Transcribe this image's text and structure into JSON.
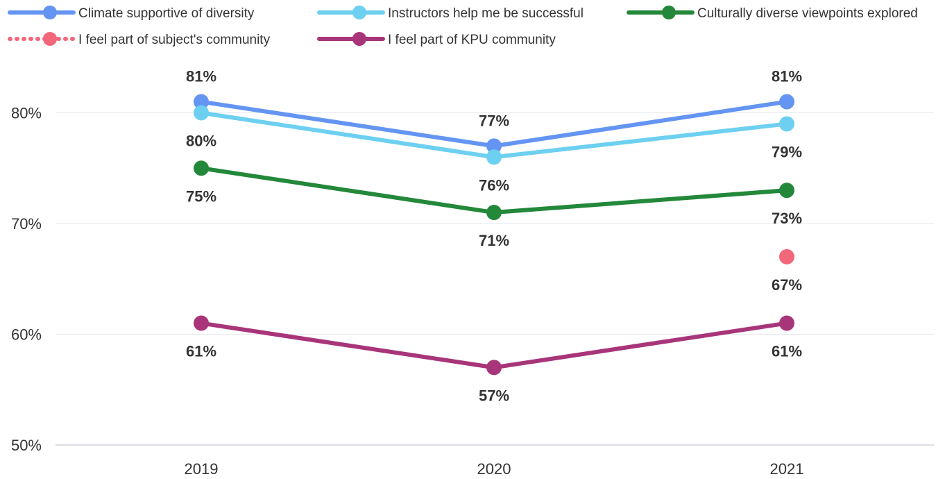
{
  "chart_data": {
    "type": "line",
    "x": [
      "2019",
      "2020",
      "2021"
    ],
    "y_ticks": [
      "50%",
      "60%",
      "70%",
      "80%"
    ],
    "ylim": [
      50,
      85
    ],
    "grid": true,
    "legend_position": "top",
    "series": [
      {
        "name": "Climate supportive of diversity",
        "color": "#6495F2",
        "line_style": "solid",
        "values": [
          81,
          77,
          81
        ],
        "labels": [
          "81%",
          "77%",
          "81%"
        ],
        "label_side": [
          "above",
          "above",
          "above"
        ]
      },
      {
        "name": "Instructors help me be successful",
        "color": "#6DD0F0",
        "line_style": "solid",
        "values": [
          80,
          76,
          79
        ],
        "labels": [
          "80%",
          "76%",
          "79%"
        ],
        "label_side": [
          "below",
          "below",
          "below"
        ]
      },
      {
        "name": "Culturally diverse viewpoints explored",
        "color": "#23883A",
        "line_style": "solid",
        "values": [
          75,
          71,
          73
        ],
        "labels": [
          "75%",
          "71%",
          "73%"
        ],
        "label_side": [
          "below",
          "below",
          "below"
        ]
      },
      {
        "name": "I feel part of subject's community",
        "color": "#F2677A",
        "line_style": "dotted",
        "values": [
          null,
          null,
          67
        ],
        "labels": [
          null,
          null,
          "67%"
        ],
        "label_side": [
          "below",
          "below",
          "below"
        ]
      },
      {
        "name": "I feel part of KPU community",
        "color": "#A8357A",
        "line_style": "solid",
        "values": [
          61,
          57,
          61
        ],
        "labels": [
          "61%",
          "57%",
          "61%"
        ],
        "label_side": [
          "below",
          "below",
          "below"
        ]
      }
    ]
  }
}
